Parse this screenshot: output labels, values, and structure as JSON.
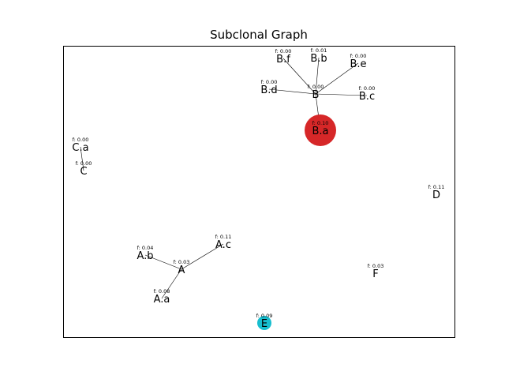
{
  "title": "Subclonal Graph",
  "colors": {
    "background": "#ffffff",
    "frame": "#000000",
    "edge": "#000000",
    "node_red": "#d62728",
    "node_cyan": "#17becf"
  },
  "nodes": [
    {
      "id": "B",
      "label": "B",
      "freq": "f: 0.00"
    },
    {
      "id": "B.f",
      "label": "B.f",
      "freq": "f: 0.00"
    },
    {
      "id": "B.b",
      "label": "B.b",
      "freq": "f: 0.01"
    },
    {
      "id": "B.e",
      "label": "B.e",
      "freq": "f: 0.00"
    },
    {
      "id": "B.d",
      "label": "B.d",
      "freq": "f: 0.00"
    },
    {
      "id": "B.c",
      "label": "B.c",
      "freq": "f: 0.00"
    },
    {
      "id": "B.a",
      "label": "B.a",
      "freq": "f: 0.10",
      "marker": "large-red"
    },
    {
      "id": "C.a",
      "label": "C.a",
      "freq": "f: 0.00"
    },
    {
      "id": "C",
      "label": "C",
      "freq": "f: 0.00"
    },
    {
      "id": "D",
      "label": "D",
      "freq": "f: 0.11"
    },
    {
      "id": "A",
      "label": "A",
      "freq": "f: 0.03"
    },
    {
      "id": "A.b",
      "label": "A.b",
      "freq": "f: 0.04"
    },
    {
      "id": "A.c",
      "label": "A.c",
      "freq": "f: 0.11"
    },
    {
      "id": "A.a",
      "label": "A.a",
      "freq": "f: 0.08"
    },
    {
      "id": "F",
      "label": "F",
      "freq": "f: 0.03"
    },
    {
      "id": "E",
      "label": "E",
      "freq": "f: 0.09",
      "marker": "small-cyan"
    }
  ],
  "edges": [
    [
      "B",
      "B.f"
    ],
    [
      "B",
      "B.b"
    ],
    [
      "B",
      "B.e"
    ],
    [
      "B",
      "B.d"
    ],
    [
      "B",
      "B.c"
    ],
    [
      "B",
      "B.a"
    ],
    [
      "C",
      "C.a"
    ],
    [
      "A",
      "A.b"
    ],
    [
      "A",
      "A.c"
    ],
    [
      "A",
      "A.a"
    ]
  ]
}
